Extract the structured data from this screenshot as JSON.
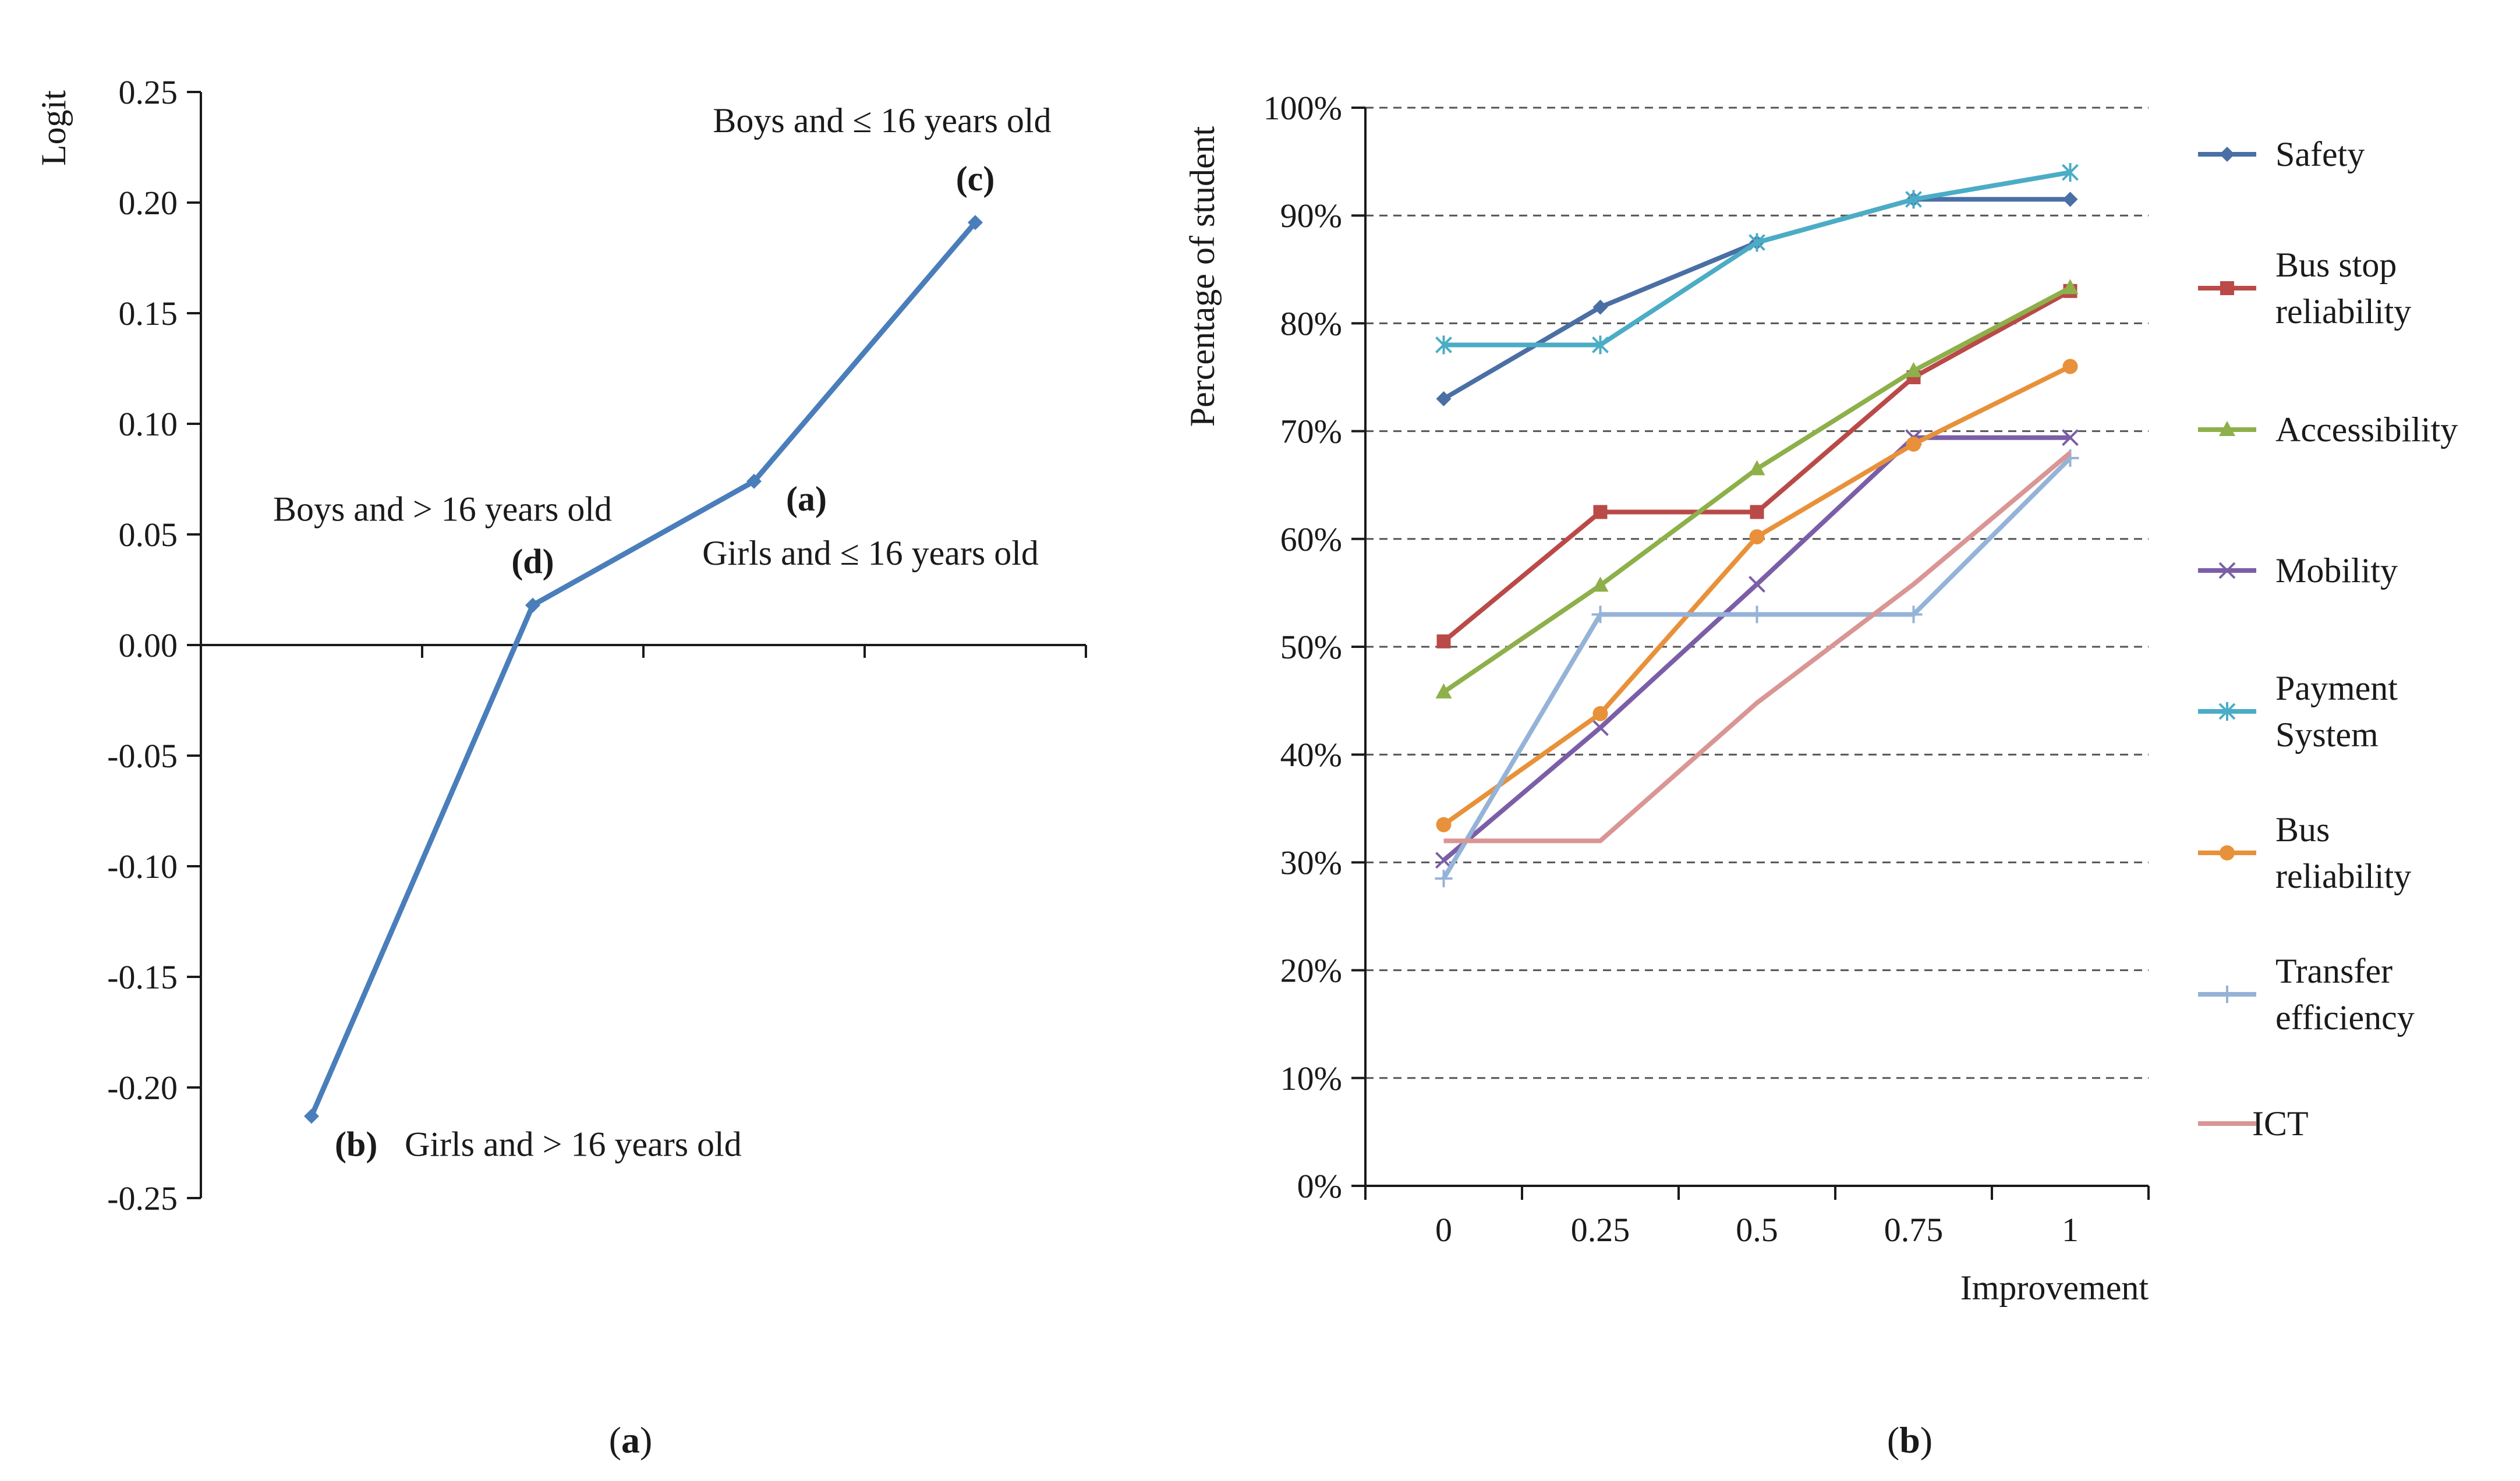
{
  "chart_data": [
    {
      "type": "line",
      "panel_caption": {
        "open": "(",
        "letter": "a",
        "close": ")"
      },
      "ylabel": "Logit",
      "ylim": [
        -0.25,
        0.25
      ],
      "yticks": [
        "0.25",
        "0.20",
        "0.15",
        "0.10",
        "0.05",
        "0.00",
        "-0.05",
        "-0.10",
        "-0.15",
        "-0.20",
        "-0.25"
      ],
      "ytick_values": [
        0.25,
        0.2,
        0.15,
        0.1,
        0.05,
        0.0,
        -0.05,
        -0.1,
        -0.15,
        -0.2,
        -0.25
      ],
      "x_categories": 4,
      "color": "#4a7ebb",
      "points": [
        {
          "id": "b",
          "x": 1,
          "y": -0.213,
          "tag": "(b)",
          "label": "Girls and > 16 years  old"
        },
        {
          "id": "d",
          "x": 2,
          "y": 0.018,
          "tag": "(d)",
          "label": "Boys and > 16 years  old"
        },
        {
          "id": "a",
          "x": 3,
          "y": 0.074,
          "tag": "(a)",
          "label": "Girls and ≤ 16 years  old"
        },
        {
          "id": "c",
          "x": 4,
          "y": 0.191,
          "tag": "(c)",
          "label": "Boys and ≤ 16 years  old"
        }
      ]
    },
    {
      "type": "line",
      "panel_caption": {
        "open": "(",
        "letter": "b",
        "close": ")"
      },
      "ylabel": "Percentage  of student",
      "xlabel": "Improvement",
      "ylim": [
        0,
        100
      ],
      "yticks": [
        "0%",
        "10%",
        "20%",
        "30%",
        "40%",
        "50%",
        "60%",
        "70%",
        "80%",
        "90%",
        "100%"
      ],
      "ytick_values": [
        0,
        10,
        20,
        30,
        40,
        50,
        60,
        70,
        80,
        90,
        100
      ],
      "categories": [
        "0",
        "0.25",
        "0.5",
        "0.75",
        "1"
      ],
      "grid": "dashed horizontal",
      "legend": "right",
      "series": [
        {
          "name_lines": [
            "Safety"
          ],
          "color": "#4a6fa5",
          "marker": "diamond",
          "values": [
            73.0,
            81.5,
            87.5,
            91.5,
            91.5
          ]
        },
        {
          "name_lines": [
            "Bus stop",
            "reliability"
          ],
          "color": "#b94a48",
          "marker": "square",
          "values": [
            50.5,
            62.5,
            62.5,
            75.0,
            83.0
          ]
        },
        {
          "name_lines": [
            "Accessibility"
          ],
          "color": "#8db04a",
          "marker": "triangle",
          "values": [
            45.8,
            55.7,
            66.5,
            75.6,
            83.3
          ]
        },
        {
          "name_lines": [
            "Mobility"
          ],
          "color": "#7b5ea7",
          "marker": "x",
          "values": [
            30.2,
            42.5,
            55.8,
            69.4,
            69.4
          ]
        },
        {
          "name_lines": [
            "Payment",
            "System"
          ],
          "color": "#4bacc6",
          "marker": "star",
          "values": [
            78.0,
            78.0,
            87.5,
            91.5,
            94.0
          ]
        },
        {
          "name_lines": [
            "Bus",
            "reliability"
          ],
          "color": "#e8913a",
          "marker": "circle",
          "values": [
            33.5,
            43.8,
            60.2,
            68.8,
            76.0
          ]
        },
        {
          "name_lines": [
            "Transfer",
            "efficiency"
          ],
          "color": "#95b3d7",
          "marker": "plus",
          "values": [
            28.5,
            53.0,
            53.0,
            53.0,
            67.5
          ]
        },
        {
          "name_lines": [
            "ICT"
          ],
          "color": "#d99694",
          "marker": "none",
          "values": [
            32.0,
            32.0,
            44.8,
            55.8,
            68.0
          ]
        }
      ]
    }
  ]
}
